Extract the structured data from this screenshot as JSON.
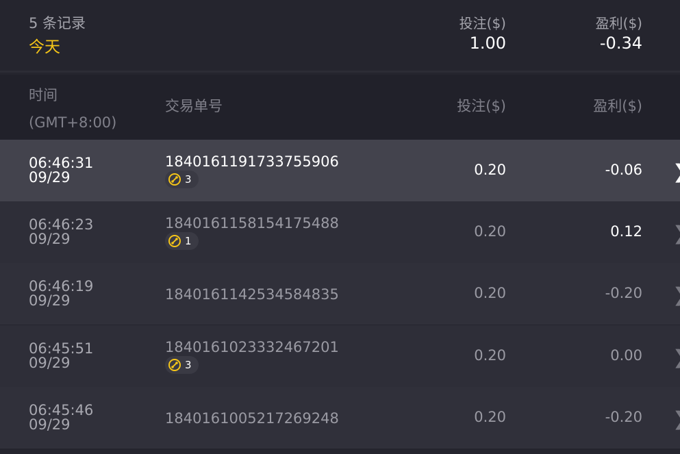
{
  "summary": {
    "count_label": "5 条记录",
    "period": "今天",
    "stake_label": "投注($)",
    "stake_value": "1.00",
    "profit_label": "盈利($)",
    "profit_value": "-0.34"
  },
  "table": {
    "headers": {
      "time": "时间",
      "timezone": "(GMT+8:00)",
      "id": "交易单号",
      "stake": "投注($)",
      "profit": "盈利($)"
    },
    "rows": [
      {
        "time": "06:46:31",
        "date": "09/29",
        "id": "1840161191733755906",
        "badge": "3",
        "stake": "0.20",
        "profit": "-0.06",
        "selected": true
      },
      {
        "time": "06:46:23",
        "date": "09/29",
        "id": "1840161158154175488",
        "badge": "1",
        "stake": "0.20",
        "profit": "0.12"
      },
      {
        "time": "06:46:19",
        "date": "09/29",
        "id": "1840161142534584835",
        "stake": "0.20",
        "profit": "-0.20"
      },
      {
        "time": "06:45:51",
        "date": "09/29",
        "id": "1840161023332467201",
        "badge": "3",
        "stake": "0.20",
        "profit": "0.00"
      },
      {
        "time": "06:45:46",
        "date": "09/29",
        "id": "1840161005217269248",
        "stake": "0.20",
        "profit": "-0.20"
      }
    ]
  },
  "colors": {
    "accent": "#f5c518",
    "selected_row": "#43434d",
    "positive": "#ffffff"
  },
  "icons": {
    "badge": "free-spin-icon",
    "row_action": "chevron-right-icon"
  }
}
